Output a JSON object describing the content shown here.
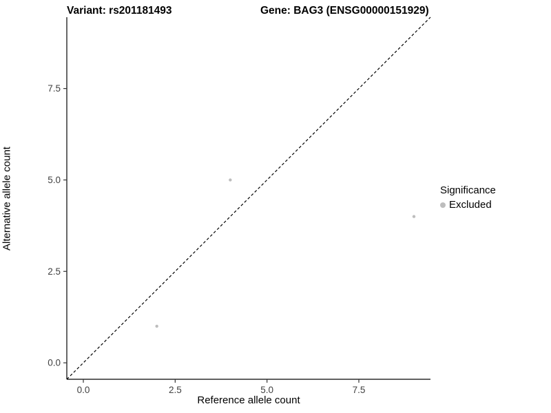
{
  "chart_data": {
    "type": "scatter",
    "title_variant": "Variant: rs201181493",
    "title_gene": "Gene: BAG3 (ENSG00000151929)",
    "xlabel": "Reference allele count",
    "ylabel": "Alternative allele count",
    "x_ticks": [
      0.0,
      2.5,
      5.0,
      7.5
    ],
    "y_ticks": [
      0.0,
      2.5,
      5.0,
      7.5
    ],
    "xlim": [
      -0.45,
      9.45
    ],
    "ylim": [
      -0.45,
      9.45
    ],
    "grid": false,
    "points": [
      {
        "x": 2,
        "y": 1,
        "significance": "Excluded"
      },
      {
        "x": 4,
        "y": 5,
        "significance": "Excluded"
      },
      {
        "x": 9,
        "y": 4,
        "significance": "Excluded"
      }
    ],
    "point_color": "#bdbdbd",
    "axis_color": "#000000",
    "tick_label_color": "#404040",
    "reference_line": {
      "type": "identity y = x",
      "style": "dashed",
      "color": "#000000"
    },
    "legend": {
      "position": "right",
      "title": "Significance",
      "entries": [
        {
          "label": "Excluded",
          "color": "#bdbdbd"
        }
      ]
    }
  }
}
